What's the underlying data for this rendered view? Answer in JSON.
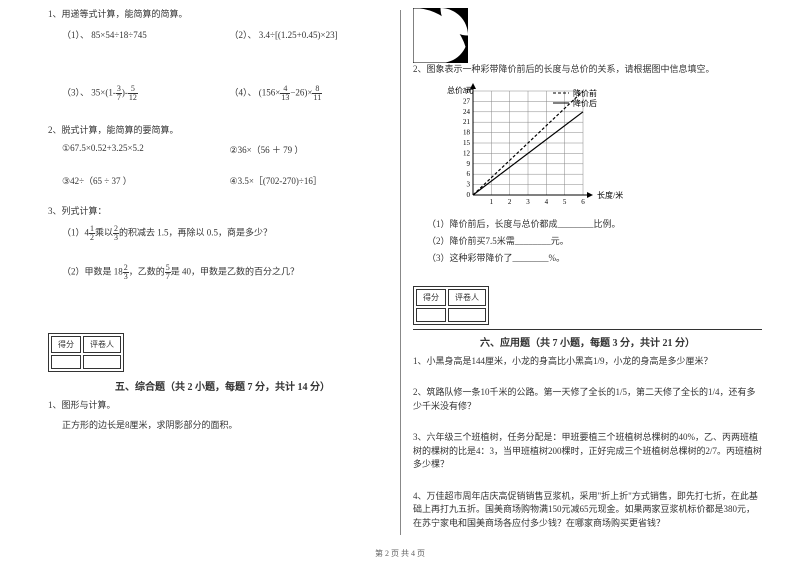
{
  "footer": "第 2 页 共 4 页",
  "left": {
    "q1": {
      "stem": "1、用递等式计算，能简算的简算。",
      "i1": "（1）、 85×54÷18÷745",
      "i2": "（2）、 3.4÷[(1.25+0.45)×23]",
      "i3_pre": "（3）、 35×(1-",
      "i3_f1n": "3",
      "i3_f1d": "7",
      "i3_mid": ")-",
      "i3_f2n": "5",
      "i3_f2d": "12",
      "i4_pre": "（4）、 (156×",
      "i4_f1n": "4",
      "i4_f1d": "13",
      "i4_mid": "−26)×",
      "i4_f2n": "8",
      "i4_f2d": "11"
    },
    "q2": {
      "stem": "2、脱式计算，能简算的要简算。",
      "i1": "①67.5×0.52+3.25×5.2",
      "i2": "②36×（56 ＋ 79 ）",
      "i3": "③42÷（65 ÷ 37 ）",
      "i4": "④3.5×［(702-270)÷16］"
    },
    "q3": {
      "stem": "3、列式计算：",
      "i1_pre": "（1）4",
      "i1_f1n": "1",
      "i1_f1d": "2",
      "i1_mid": "乘以",
      "i1_f2n": "2",
      "i1_f2d": "3",
      "i1_post": "的积减去 1.5，再除以 0.5，商是多少？",
      "i2_pre": "（2）甲数是 18",
      "i2_f1n": "2",
      "i2_f1d": "3",
      "i2_mid": "，乙数的",
      "i2_f2n": "5",
      "i2_f2d": "7",
      "i2_post": "是 40，甲数是乙数的百分之几？"
    },
    "score_l": "得分",
    "score_r": "评卷人",
    "sec5_title": "五、综合题（共 2 小题，每题 7 分，共计 14 分）",
    "q5_1": "1、图形与计算。",
    "q5_1b": "正方形的边长是8厘米，求阴影部分的面积。"
  },
  "right": {
    "logo": {
      "bg": "#000000"
    },
    "q2stem": "2、图象表示一种彩带降价前后的长度与总价的关系，请根据图中信息填空。",
    "chart": {
      "type": "line",
      "xlabel": "长度/米",
      "ylabel": "总价/元",
      "legend_a": "降价前",
      "legend_b": "降价后",
      "legend_a_style": "dashed",
      "legend_b_style": "solid",
      "xlim": [
        0,
        6
      ],
      "ylim": [
        0,
        30
      ],
      "xticks": [
        1,
        2,
        3,
        4,
        5,
        6
      ],
      "yticks": [
        3,
        6,
        9,
        12,
        15,
        18,
        21,
        24,
        27,
        30
      ],
      "grid_color": "#888888",
      "line_color": "#000000",
      "series_a": [
        [
          0,
          0
        ],
        [
          6,
          30
        ]
      ],
      "series_b": [
        [
          0,
          0
        ],
        [
          6,
          24
        ]
      ]
    },
    "q2_1": "（1）降价前后，长度与总价都成________比例。",
    "q2_2": "（2）降价前买7.5米需________元。",
    "q2_3": "（3）这种彩带降价了________%。",
    "score_l": "得分",
    "score_r": "评卷人",
    "sec6_title": "六、应用题（共 7 小题，每题 3 分，共计 21 分）",
    "q6_1": "1、小黑身高是144厘米，小龙的身高比小黑高1/9，小龙的身高是多少厘米？",
    "q6_2": "2、筑路队修一条10千米的公路。第一天修了全长的1/5，第二天修了全长的1/4，还有多少千米没有修？",
    "q6_3": "3、六年级三个班植树，任务分配是：甲班要植三个班植树总棵树的40%，乙、丙两班植树的棵树的比是4：3，当甲班植树200棵时，正好完成三个班植树总棵树的2/7。丙班植树多少棵？",
    "q6_4": "4、万佳超市周年店庆高促销销售豆浆机，采用\"折上折\"方式销售，即先打七折，在此基础上再打九五折。国美商场购物满150元减65元现金。如果两家豆浆机标价都是380元，在苏宁家电和国美商场各应付多少钱？在哪家商场购买更省钱？"
  }
}
